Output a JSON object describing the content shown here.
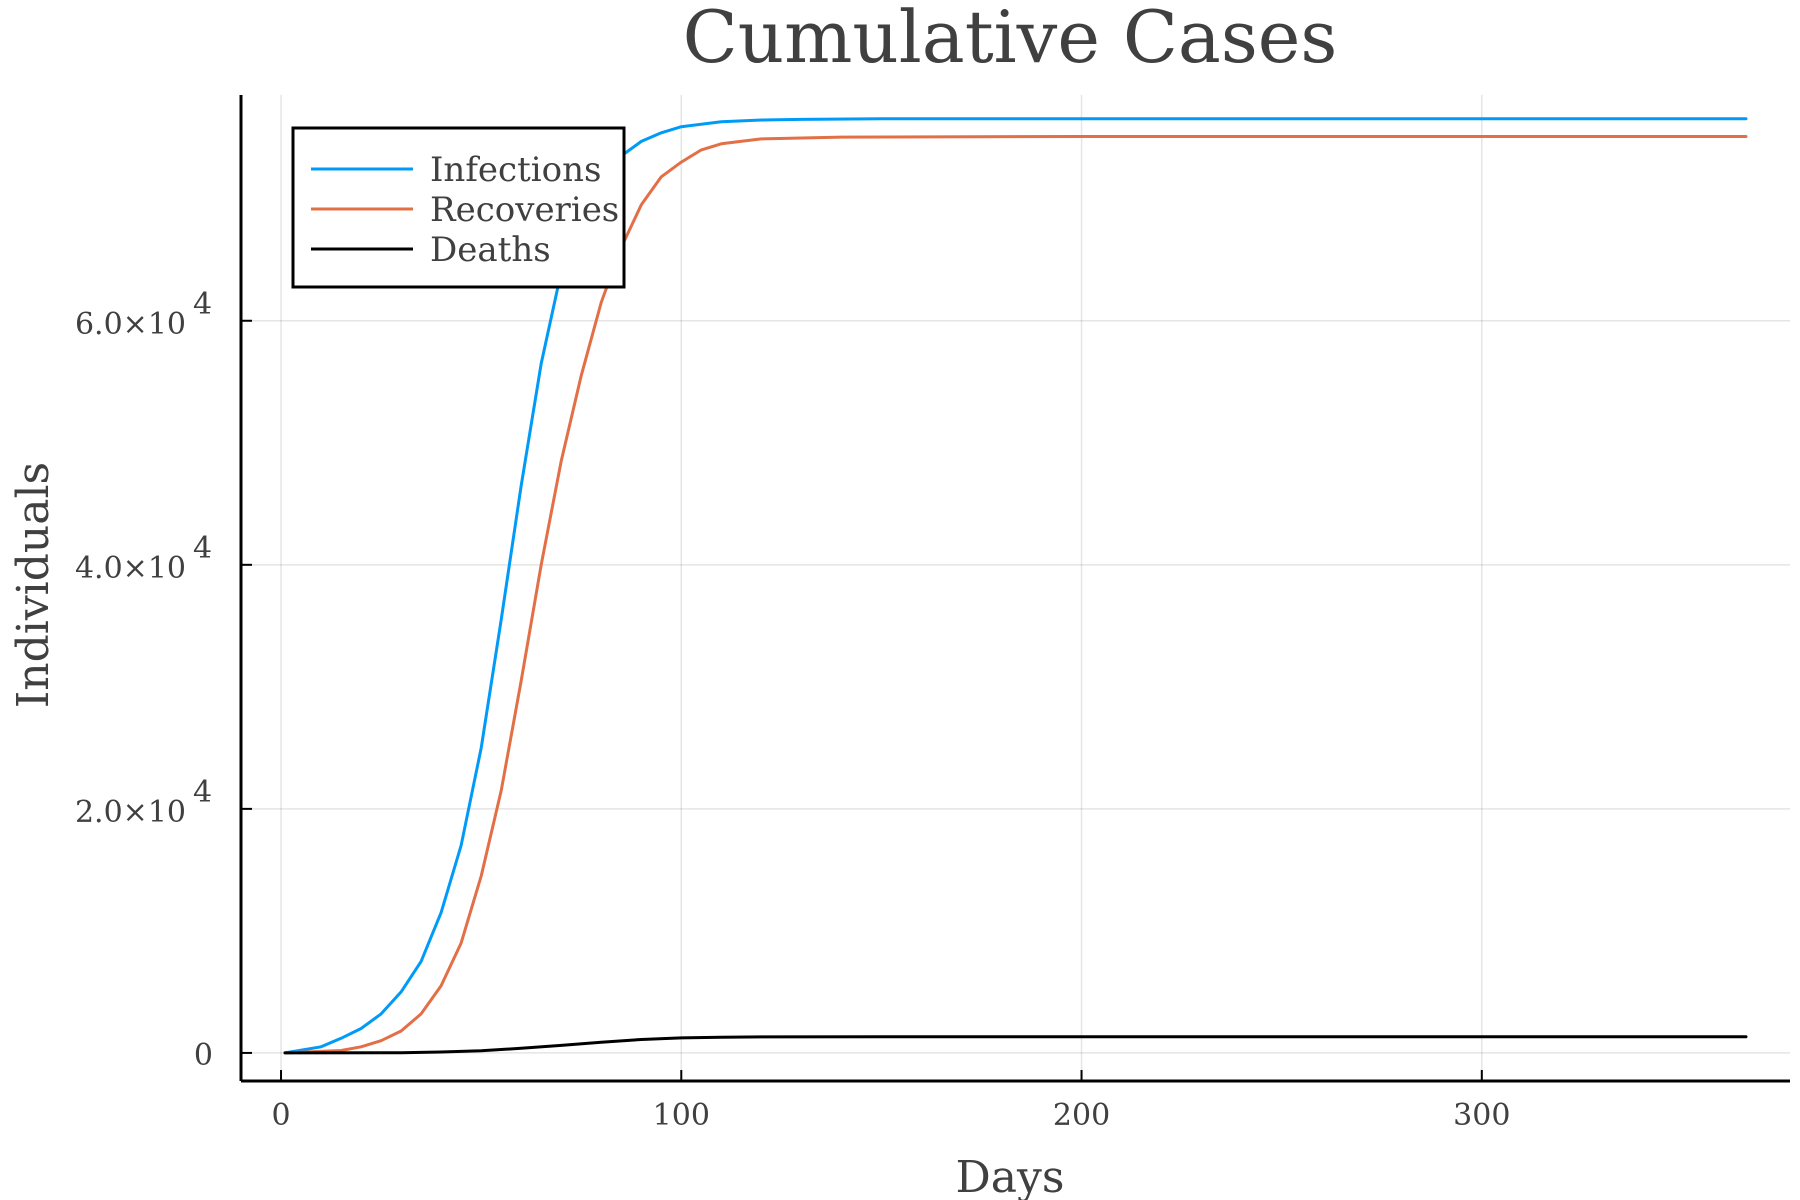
{
  "chart_data": {
    "type": "line",
    "title": "Cumulative Cases",
    "xlabel": "Days",
    "ylabel": "Individuals",
    "xlim": [
      -10,
      377
    ],
    "ylim": [
      -2300,
      78500
    ],
    "grid": true,
    "legend_position": "top-left",
    "x_ticks": [
      {
        "value": 0,
        "label": "0"
      },
      {
        "value": 100,
        "label": "100"
      },
      {
        "value": 200,
        "label": "200"
      },
      {
        "value": 300,
        "label": "300"
      }
    ],
    "y_ticks": [
      {
        "value": 0,
        "mantissa": "0",
        "exponent": ""
      },
      {
        "value": 20000,
        "mantissa": "2.0×10",
        "exponent": "4"
      },
      {
        "value": 40000,
        "mantissa": "4.0×10",
        "exponent": "4"
      },
      {
        "value": 60000,
        "mantissa": "6.0×10",
        "exponent": "4"
      }
    ],
    "series": [
      {
        "name": "Infections",
        "color": "#009af9",
        "x": [
          1,
          10,
          15,
          20,
          25,
          30,
          35,
          40,
          45,
          50,
          55,
          60,
          65,
          70,
          75,
          80,
          85,
          90,
          95,
          100,
          110,
          120,
          130,
          150,
          200,
          300,
          366
        ],
        "y": [
          0,
          500,
          1200,
          2000,
          3200,
          5000,
          7500,
          11500,
          17000,
          25000,
          35500,
          46500,
          56500,
          64000,
          69000,
          72000,
          73500,
          74700,
          75400,
          75900,
          76300,
          76450,
          76500,
          76550,
          76550,
          76550,
          76550
        ]
      },
      {
        "name": "Recoveries",
        "color": "#e26f46",
        "x": [
          1,
          15,
          20,
          25,
          30,
          35,
          40,
          45,
          50,
          55,
          60,
          65,
          70,
          75,
          80,
          85,
          90,
          95,
          100,
          105,
          110,
          120,
          140,
          200,
          300,
          366
        ],
        "y": [
          0,
          200,
          500,
          1000,
          1800,
          3200,
          5500,
          9000,
          14500,
          21500,
          30500,
          40000,
          48500,
          55500,
          61500,
          66000,
          69500,
          71800,
          73000,
          74000,
          74500,
          74900,
          75050,
          75100,
          75100,
          75100
        ]
      },
      {
        "name": "Deaths",
        "color": "#000000",
        "x": [
          1,
          30,
          40,
          50,
          60,
          70,
          80,
          90,
          100,
          110,
          120,
          150,
          200,
          300,
          366
        ],
        "y": [
          0,
          20,
          80,
          180,
          380,
          620,
          880,
          1100,
          1230,
          1290,
          1310,
          1320,
          1320,
          1320,
          1320
        ]
      }
    ]
  }
}
